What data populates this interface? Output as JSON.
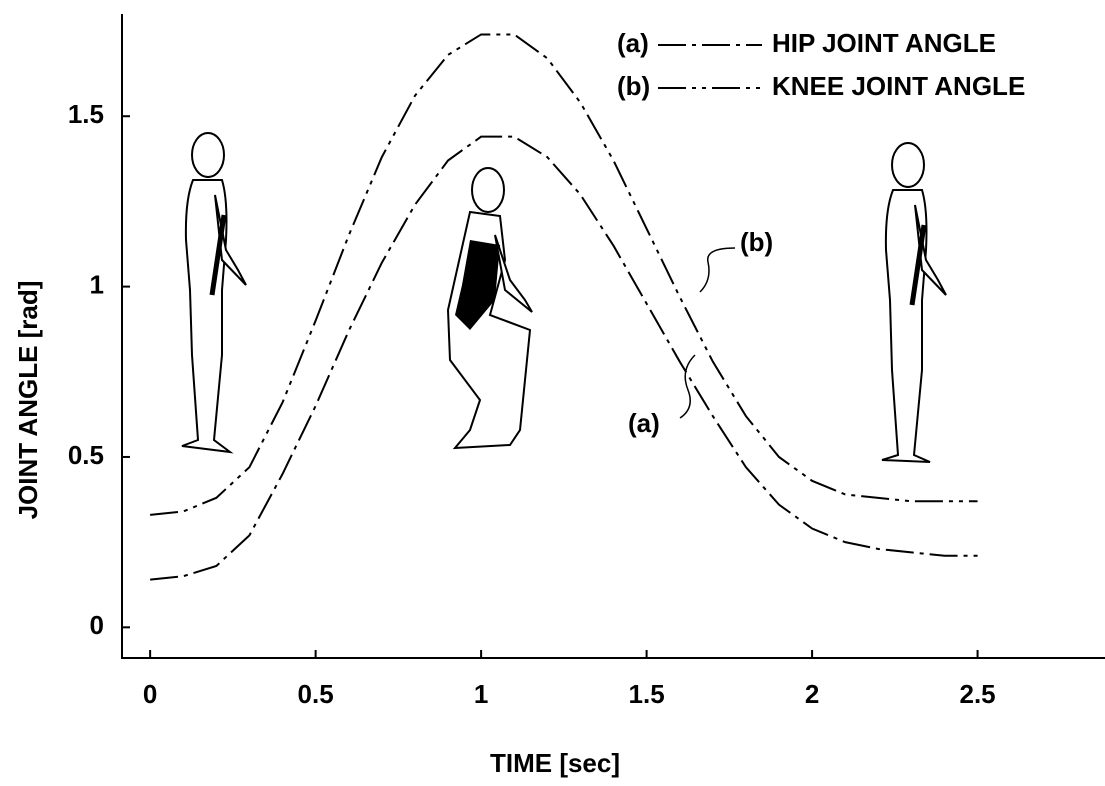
{
  "chart_data": {
    "type": "line",
    "x_label": "TIME [sec]",
    "y_label": "JOINT ANGLE [rad]",
    "x": [
      0,
      0.1,
      0.2,
      0.3,
      0.4,
      0.5,
      0.6,
      0.7,
      0.8,
      0.9,
      1.0,
      1.1,
      1.2,
      1.3,
      1.4,
      1.5,
      1.6,
      1.7,
      1.8,
      1.9,
      2.0,
      2.1,
      2.2,
      2.3,
      2.4,
      2.5
    ],
    "series": [
      {
        "name": "HIP JOINT ANGLE",
        "tag": "(a)",
        "color": "#000000",
        "dash": "dash-dot",
        "values": [
          0.14,
          0.15,
          0.18,
          0.27,
          0.45,
          0.65,
          0.87,
          1.07,
          1.24,
          1.37,
          1.44,
          1.44,
          1.38,
          1.27,
          1.12,
          0.95,
          0.78,
          0.62,
          0.47,
          0.36,
          0.29,
          0.25,
          0.23,
          0.22,
          0.21,
          0.21
        ]
      },
      {
        "name": "KNEE JOINT ANGLE",
        "tag": "(b)",
        "color": "#000000",
        "dash": "dash-dot-dot",
        "values": [
          0.33,
          0.34,
          0.38,
          0.47,
          0.66,
          0.9,
          1.15,
          1.38,
          1.56,
          1.68,
          1.74,
          1.74,
          1.67,
          1.54,
          1.37,
          1.17,
          0.97,
          0.78,
          0.62,
          0.5,
          0.43,
          0.39,
          0.38,
          0.37,
          0.37,
          0.37
        ]
      }
    ],
    "annotations": [
      "(a)",
      "(b)"
    ],
    "xlim": [
      -0.085,
      2.885
    ],
    "ylim": [
      -0.09,
      1.8
    ],
    "xticks": [
      0,
      0.5,
      1,
      1.5,
      2,
      2.5
    ],
    "yticks": [
      0,
      0.5,
      1,
      1.5
    ],
    "legend": "upper right",
    "grid": false
  }
}
